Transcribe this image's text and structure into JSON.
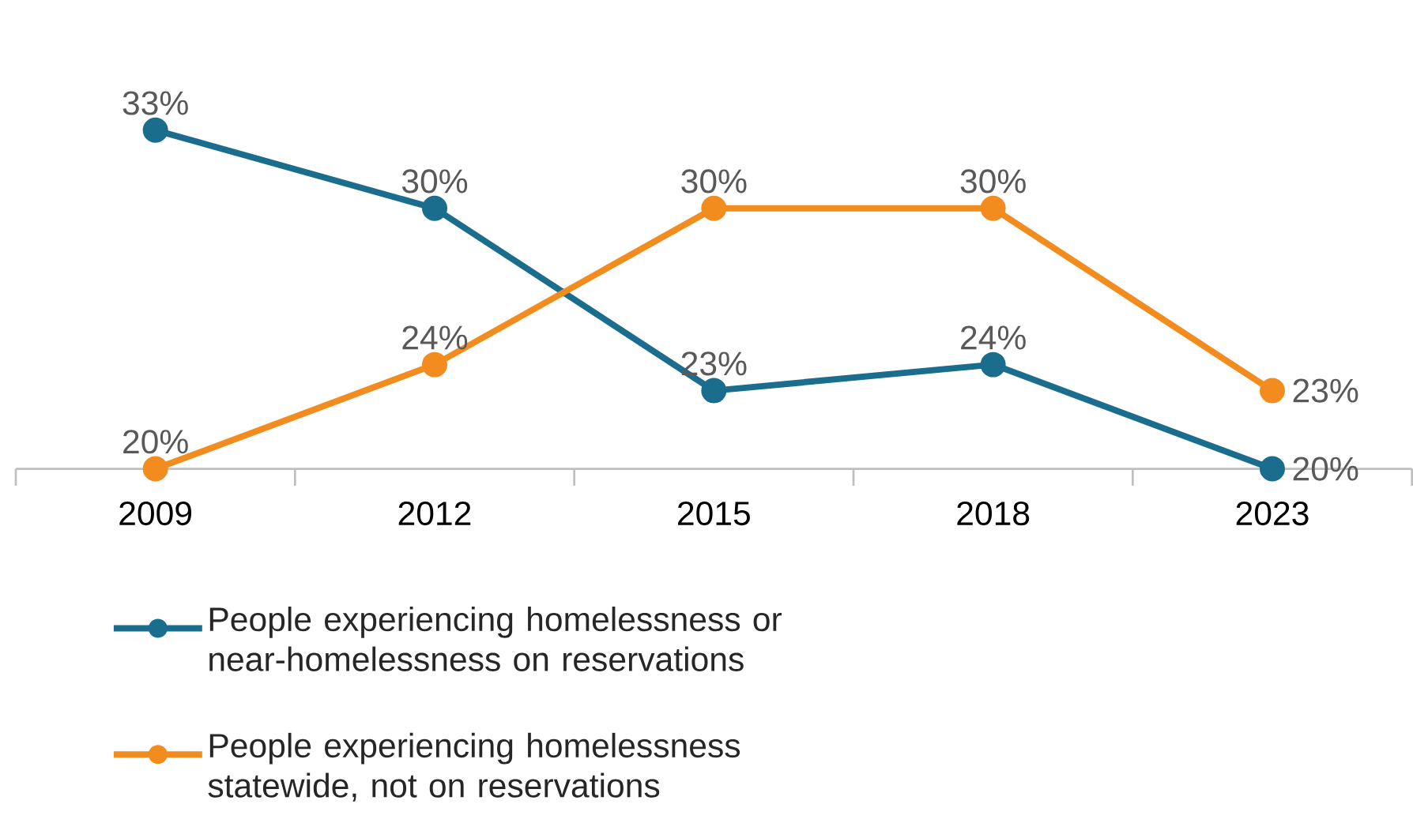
{
  "chart_data": {
    "type": "line",
    "categories": [
      "2009",
      "2012",
      "2015",
      "2018",
      "2023"
    ],
    "series": [
      {
        "name": "People experiencing homelessness or near-homelessness on reservations",
        "color": "#1b6d8d",
        "values": [
          33,
          30,
          23,
          24,
          20
        ],
        "value_labels": [
          "33%",
          "30%",
          "23%",
          "24%",
          "20%"
        ]
      },
      {
        "name": "People experiencing homelessness statewide, not on reservations",
        "color": "#f28c1f",
        "values": [
          20,
          24,
          30,
          30,
          23
        ],
        "value_labels": [
          "20%",
          "24%",
          "30%",
          "30%",
          "23%"
        ]
      }
    ],
    "tick_labels": "x",
    "grid": false,
    "legend": "bottom",
    "marker": "circle",
    "line_style": "solid"
  }
}
